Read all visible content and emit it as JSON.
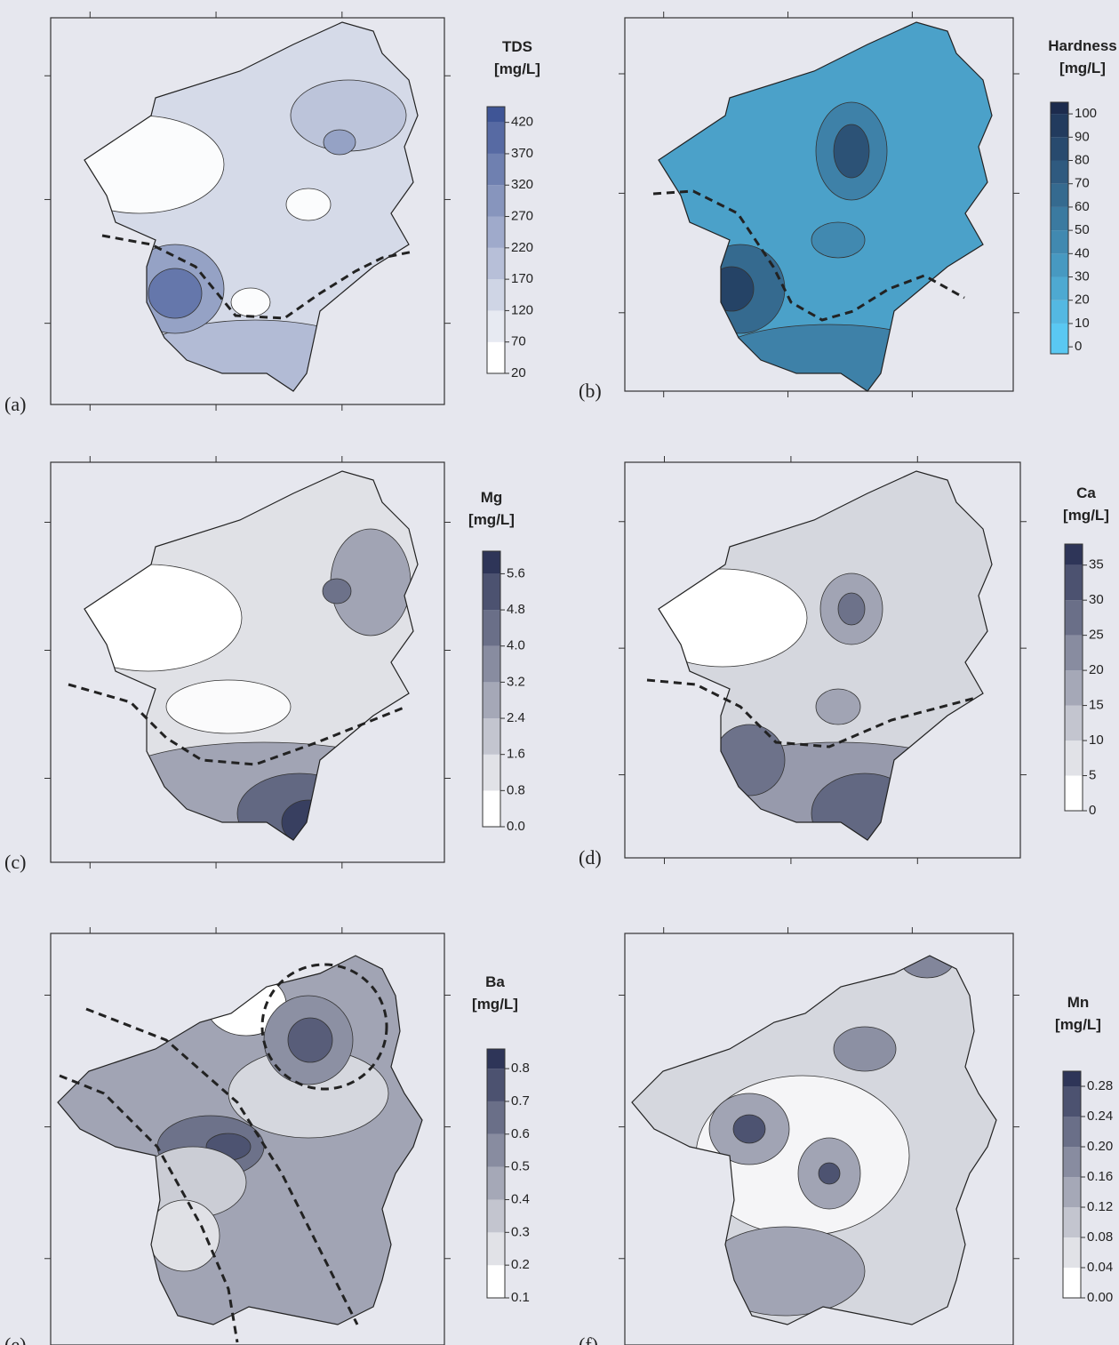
{
  "panels": [
    {
      "label": "(a)",
      "title": "TDS",
      "unit": "[mg/L]",
      "colorbar": {
        "lim": [
          20,
          445
        ],
        "ticks": [
          20,
          70,
          120,
          170,
          220,
          270,
          320,
          370,
          420
        ],
        "color_low": "#ffffff",
        "color_high": "#3f5596"
      }
    },
    {
      "label": "(b)",
      "title": "Hardness",
      "unit": "[mg/L]",
      "colorbar": {
        "lim": [
          -3,
          105
        ],
        "ticks": [
          0,
          10,
          20,
          30,
          40,
          50,
          60,
          70,
          80,
          90,
          100
        ],
        "color_low": "#5ac8f2",
        "color_high": "#1c2b4d"
      }
    },
    {
      "label": "(c)",
      "title": "Mg",
      "unit": "[mg/L]",
      "colorbar": {
        "lim": [
          0,
          6.1
        ],
        "ticks": [
          {
            "value": 0,
            "label": "0.0"
          },
          0.8,
          1.6,
          2.4,
          3.2,
          {
            "value": 4,
            "label": "4.0"
          },
          4.8,
          5.6
        ],
        "color_low": "#ffffff",
        "color_high": "#2e3558"
      }
    },
    {
      "label": "(d)",
      "title": "Ca",
      "unit": "[mg/L]",
      "colorbar": {
        "lim": [
          0,
          38
        ],
        "ticks": [
          0,
          5,
          10,
          15,
          20,
          25,
          30,
          35
        ],
        "color_low": "#ffffff",
        "color_high": "#2e3558"
      }
    },
    {
      "label": "(e)",
      "title": "Ba",
      "unit": "[mg/L]",
      "colorbar": {
        "lim": [
          0.1,
          0.86
        ],
        "ticks": [
          0.1,
          0.2,
          0.3,
          0.4,
          0.5,
          0.6,
          0.7,
          0.8
        ],
        "color_low": "#ffffff",
        "color_high": "#2e3558"
      }
    },
    {
      "label": "(f)",
      "title": "Mn",
      "unit": "[mg/L]",
      "colorbar": {
        "lim": [
          0,
          0.3
        ],
        "ticks": [
          {
            "value": 0,
            "label": "0.00"
          },
          0.04,
          0.08,
          0.12,
          0.16,
          {
            "value": 0.2,
            "label": "0.20"
          },
          0.24,
          0.28
        ],
        "color_low": "#ffffff",
        "color_high": "#2e3558"
      }
    }
  ]
}
